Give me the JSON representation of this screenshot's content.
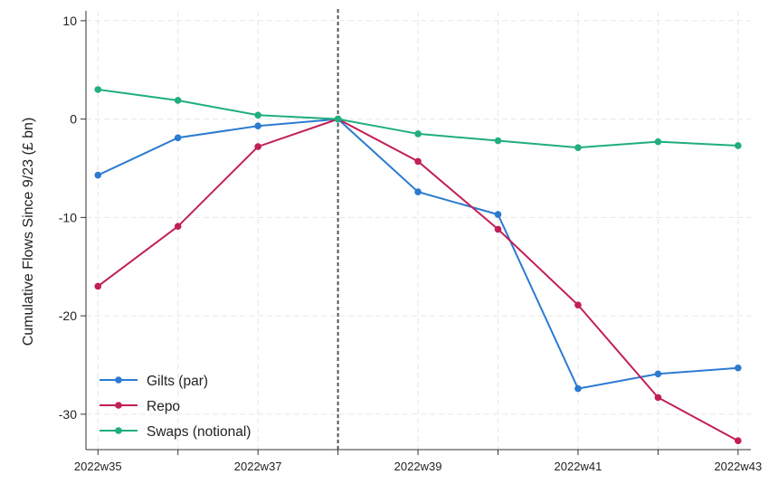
{
  "chart_data": {
    "type": "line",
    "title": "",
    "xlabel": "",
    "ylabel": "Cumulative Flows Since 9/23 (£ bn)",
    "x": [
      "2022w35",
      "2022w36",
      "2022w37",
      "2022w38",
      "2022w39",
      "2022w40",
      "2022w41",
      "2022w42",
      "2022w43"
    ],
    "x_tick_labels": [
      "2022w35",
      "2022w37",
      "2022w39",
      "2022w41",
      "2022w43"
    ],
    "y_ticks": [
      10,
      0,
      -10,
      -20,
      -30
    ],
    "ylim": [
      -33.6,
      11
    ],
    "grid": true,
    "reference_line": {
      "x": "2022w38",
      "style": "dashed",
      "color": "#555555"
    },
    "legend_position": "bottom-left",
    "series": [
      {
        "name": "Gilts (par)",
        "color": "#2b7bd0",
        "values": [
          -5.7,
          -1.9,
          -0.7,
          0,
          -7.4,
          -9.7,
          -27.4,
          -25.9,
          -25.3
        ]
      },
      {
        "name": "Repo",
        "color": "#c21f55",
        "values": [
          -17.0,
          -10.9,
          -2.8,
          0,
          -4.3,
          -11.2,
          -18.9,
          -28.3,
          -32.7
        ]
      },
      {
        "name": "Swaps (notional)",
        "color": "#1fae7c",
        "values": [
          3.0,
          1.9,
          0.4,
          0,
          -1.5,
          -2.2,
          -2.9,
          -2.3,
          -2.7
        ]
      }
    ]
  }
}
